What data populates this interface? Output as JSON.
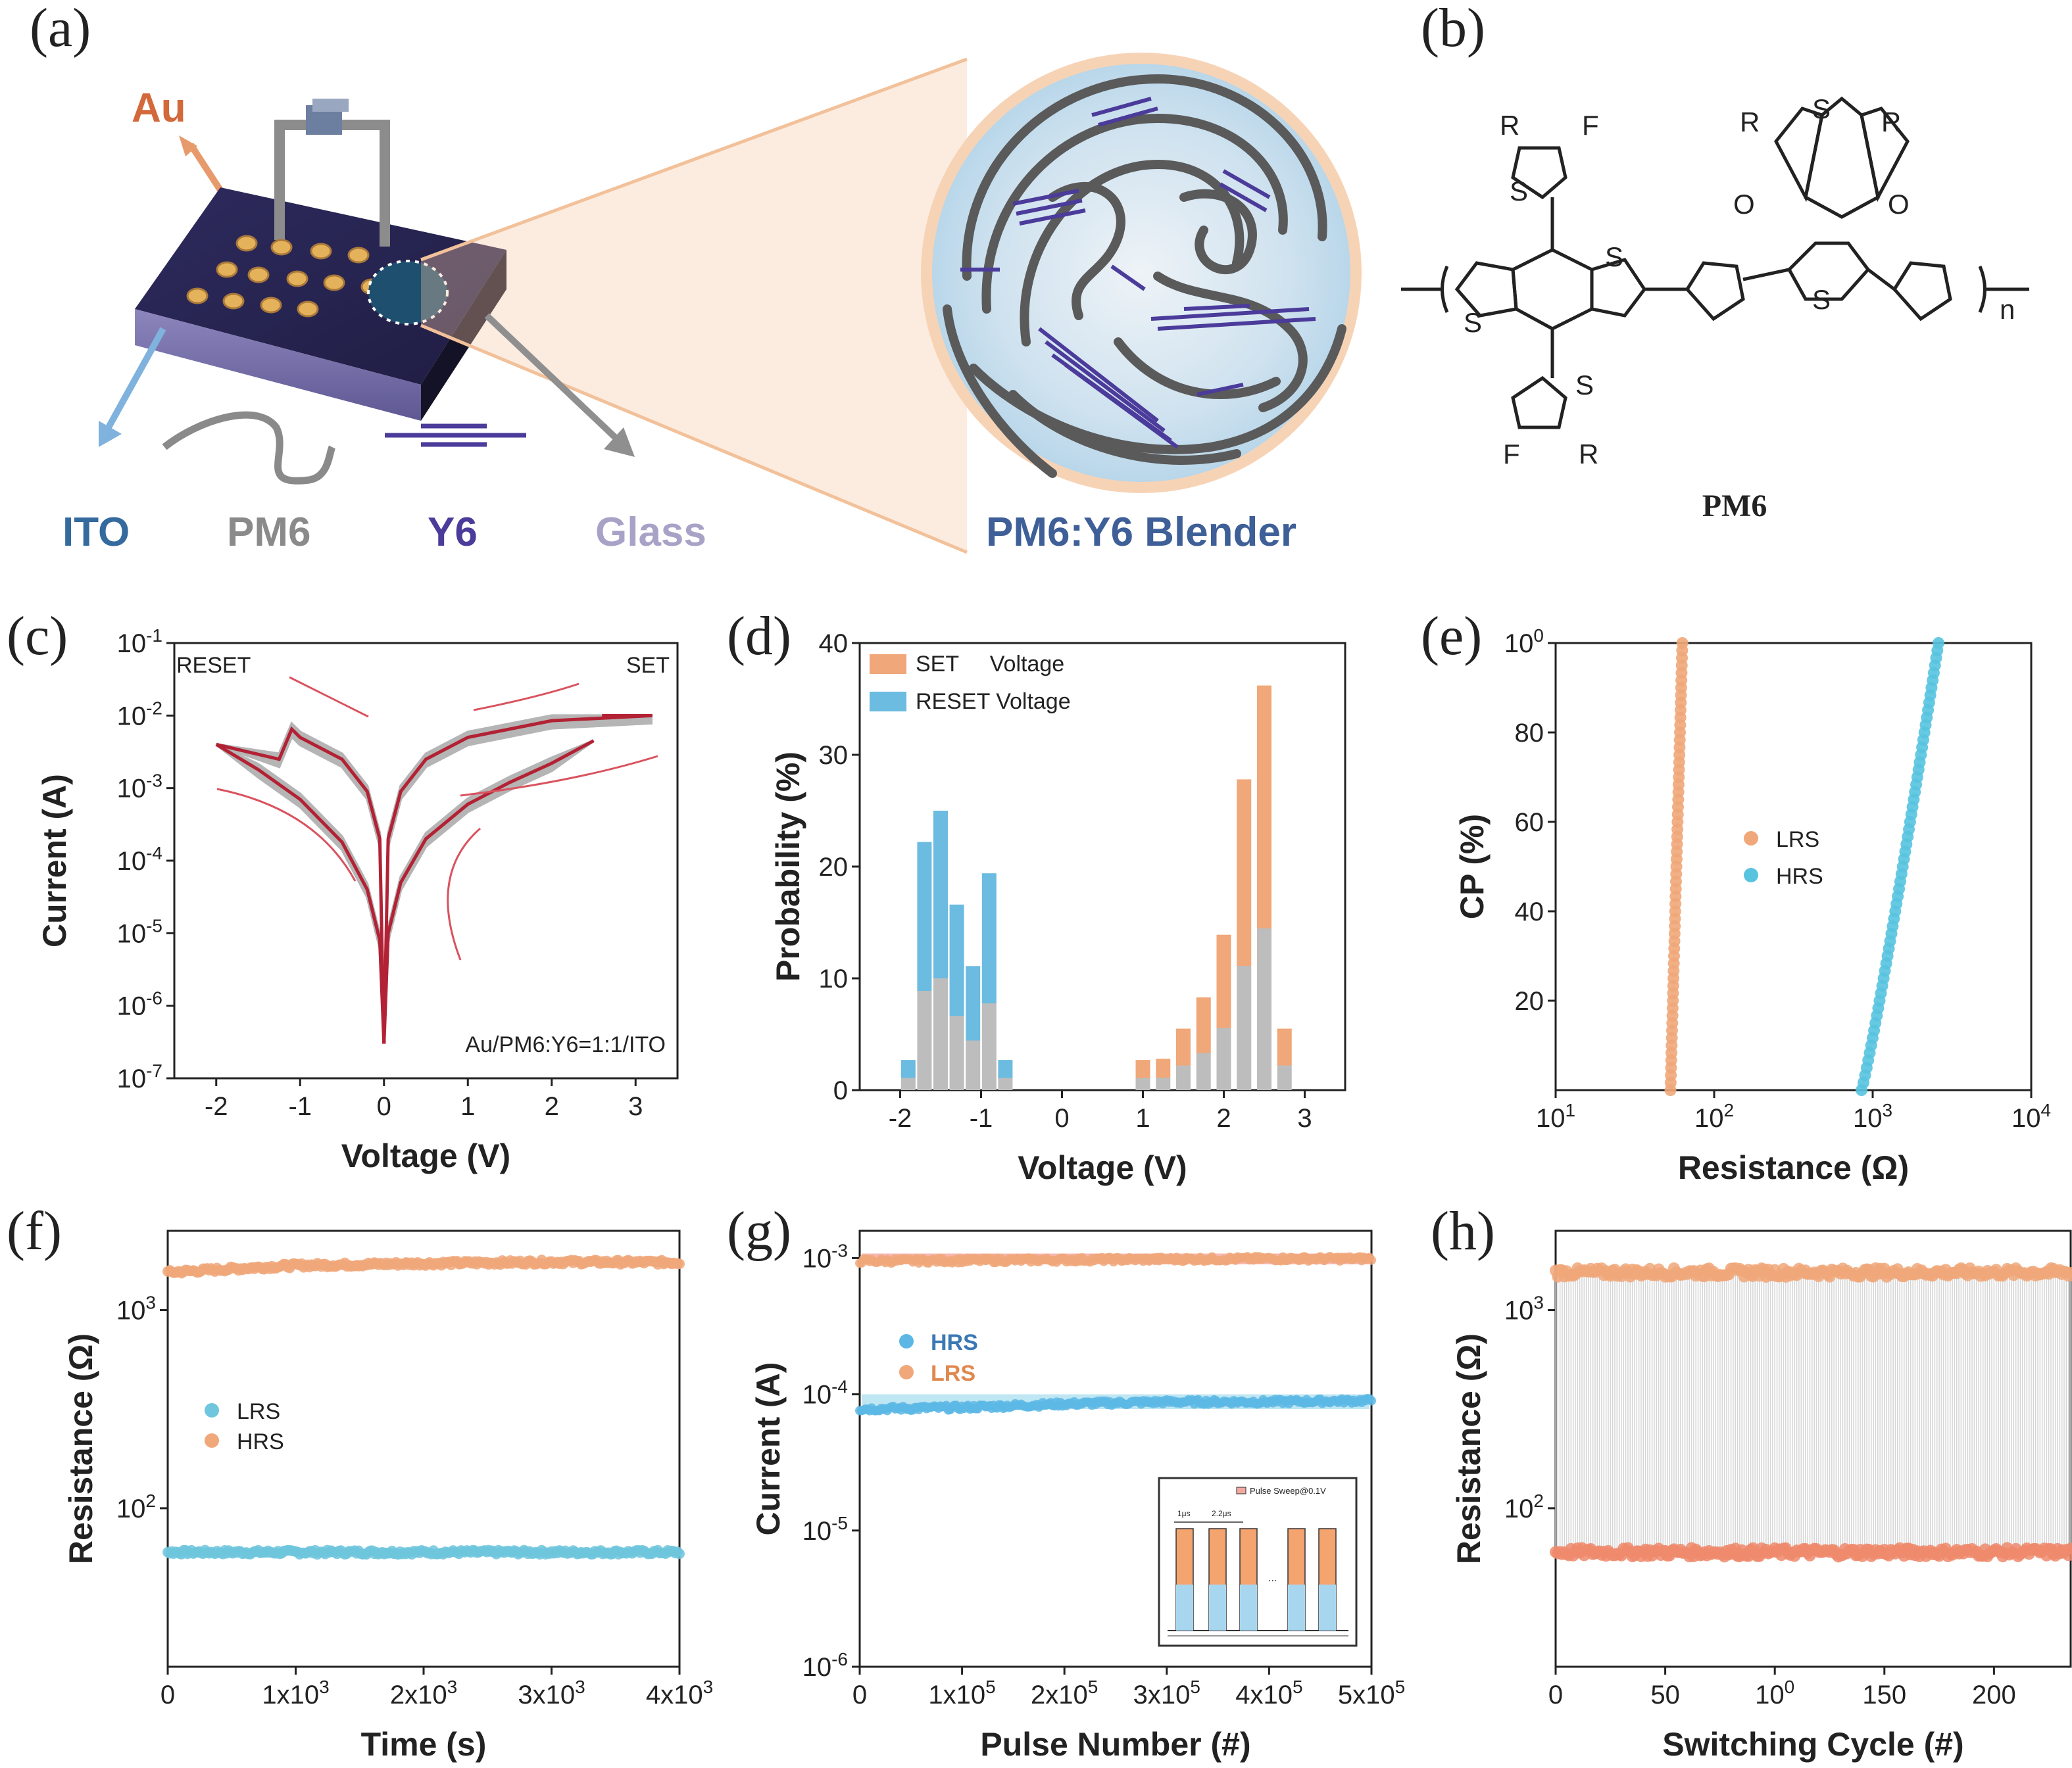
{
  "panels": {
    "a": {
      "label": "(a)",
      "electrode": "Au",
      "legend": [
        "ITO",
        "PM6",
        "Y6",
        "Glass"
      ],
      "blend": "PM6:Y6 Blender",
      "colors": {
        "au": "#d3683b",
        "ito": "#356a9e",
        "pm6": "#8a8a8a",
        "y6": "#4b3b9a",
        "glass": "#a9a2c7",
        "blend": "#3e5f97"
      }
    },
    "b": {
      "label": "(b)",
      "name": "PM6",
      "atoms": {
        "S": "S",
        "F": "F",
        "R": "R",
        "O": "O",
        "n": "n"
      }
    },
    "c": {
      "label": "(c)",
      "tag_left": "RESET",
      "tag_right": "SET",
      "device": "Au/PM6:Y6=1:1/ITO"
    },
    "d": {
      "label": "(d)"
    },
    "e": {
      "label": "(e)"
    },
    "f": {
      "label": "(f)"
    },
    "g": {
      "label": "(g)",
      "inset": {
        "title": "Pulse Sweep@0.1V",
        "width": "1μs",
        "interval": "2.2μs",
        "dots": "..."
      }
    },
    "h": {
      "label": "(h)"
    }
  },
  "chart_data": [
    {
      "id": "c",
      "type": "line",
      "xlabel": "Voltage (V)",
      "ylabel": "Current (A)",
      "xlim": [
        -2.5,
        3.5
      ],
      "ylim_log10": [
        -7,
        -1
      ],
      "xticks": [
        "-2",
        "-1",
        "0",
        "1",
        "2",
        "3"
      ],
      "yticks": [
        "10-7",
        "10-6",
        "10-5",
        "10-4",
        "10-3",
        "10-2",
        "10-1"
      ],
      "compliance_A": 0.01,
      "series": [
        {
          "x": [
            -2.0,
            -1.5,
            -1.0,
            -0.5,
            -0.2,
            -0.05,
            0
          ],
          "y": [
            0.004,
            0.0018,
            0.0007,
            0.00018,
            4e-05,
            8e-06,
            3e-07
          ]
        },
        {
          "x": [
            0,
            0.05,
            0.2,
            0.5,
            1.0,
            1.5,
            2.0,
            2.5
          ],
          "y": [
            3e-07,
            1e-05,
            5e-05,
            0.0002,
            0.0006,
            0.0012,
            0.0022,
            0.0045
          ]
        },
        {
          "x": [
            2.6,
            3.2,
            2.0,
            1.0,
            0.5,
            0.2,
            0.05,
            0
          ],
          "y": [
            0.01,
            0.01,
            0.0085,
            0.005,
            0.0025,
            0.0009,
            0.0002,
            3e-07
          ]
        },
        {
          "x": [
            0,
            -0.05,
            -0.2,
            -0.5,
            -1.0,
            -1.1,
            -1.25,
            -2.0
          ],
          "y": [
            3e-07,
            0.0002,
            0.0009,
            0.0025,
            0.005,
            0.0065,
            0.0025,
            0.004
          ]
        }
      ]
    },
    {
      "id": "d",
      "type": "bar",
      "xlabel": "Voltage (V)",
      "ylabel": "Probability (%)",
      "xlim": [
        -2.5,
        3.5
      ],
      "ylim": [
        0,
        40
      ],
      "xticks": [
        "-2",
        "-1",
        "0",
        "1",
        "2",
        "3"
      ],
      "yticks": [
        "0",
        "10",
        "20",
        "30",
        "40"
      ],
      "legend": [
        "SET     Voltage",
        "RESET Voltage"
      ],
      "series": [
        {
          "name": "SET     Voltage",
          "x": [
            1.0,
            1.25,
            1.5,
            1.75,
            2.0,
            2.25,
            2.5,
            2.75,
            3.0
          ],
          "values": [
            2.7,
            2.8,
            5.5,
            8.3,
            13.9,
            27.8,
            36.2,
            5.5,
            0
          ]
        },
        {
          "name": "RESET Voltage",
          "x": [
            -1.9,
            -1.7,
            -1.5,
            -1.3,
            -1.1,
            -0.9,
            -0.7
          ],
          "values": [
            2.7,
            22.2,
            25.0,
            16.6,
            11.1,
            19.4,
            2.7
          ]
        }
      ]
    },
    {
      "id": "e",
      "type": "scatter",
      "xlabel": "Resistance (Ω)",
      "ylabel": "CP (%)",
      "xlim_log10": [
        1,
        4
      ],
      "ylim": [
        0,
        100
      ],
      "xticks": [
        "101",
        "102",
        "103",
        "104"
      ],
      "yticks": [
        "20",
        "40",
        "60",
        "80",
        "100"
      ],
      "legend": [
        "LRS",
        "HRS"
      ],
      "series": [
        {
          "name": "LRS",
          "resistance_range": [
            53,
            63
          ]
        },
        {
          "name": "HRS",
          "resistance_range": [
            850,
            2600
          ]
        }
      ]
    },
    {
      "id": "f",
      "type": "scatter",
      "xlabel": "Time (s)",
      "ylabel": "Resistance (Ω)",
      "xlim": [
        0,
        4000
      ],
      "ylim_log10": [
        1.2,
        3.4
      ],
      "xticks": [
        "0",
        "1x103",
        "2x103",
        "3x103",
        "4x103"
      ],
      "yticks": [
        "102",
        "103"
      ],
      "legend": [
        "LRS",
        "HRS"
      ],
      "series": [
        {
          "name": "LRS",
          "x": [
            0,
            4000
          ],
          "values": [
            60,
            60
          ]
        },
        {
          "name": "HRS",
          "x": [
            0,
            1000,
            2000,
            3000,
            4000
          ],
          "values": [
            1550,
            1680,
            1720,
            1750,
            1740
          ]
        }
      ]
    },
    {
      "id": "g",
      "type": "scatter",
      "xlabel": "Pulse Number (#)",
      "ylabel": "Current (A)",
      "xlim": [
        0,
        500000
      ],
      "ylim_log10": [
        -6,
        -2.8
      ],
      "xticks": [
        "0",
        "1x105",
        "2x105",
        "3x105",
        "4x105",
        "5x105"
      ],
      "yticks": [
        "10-6",
        "10-5",
        "10-4",
        "10-3"
      ],
      "legend": [
        "HRS",
        "LRS"
      ],
      "series": [
        {
          "name": "HRS",
          "x": [
            0,
            100000,
            200000,
            300000,
            400000,
            500000
          ],
          "values": [
            7.8e-05,
            8e-05,
            8.5e-05,
            8.8e-05,
            8.8e-05,
            9e-05
          ]
        },
        {
          "name": "LRS",
          "x": [
            0,
            100000,
            200000,
            300000,
            400000,
            500000
          ],
          "values": [
            0.00095,
            0.00096,
            0.00097,
            0.00098,
            0.00099,
            0.00099
          ]
        }
      ]
    },
    {
      "id": "h",
      "type": "scatter",
      "xlabel": "Switching Cycle (#)",
      "ylabel": "Resistance (Ω)",
      "xlim": [
        0,
        235
      ],
      "ylim_log10": [
        1.2,
        3.4
      ],
      "xticks": [
        "0",
        "50",
        "100",
        "150",
        "200"
      ],
      "yticks": [
        "102",
        "103"
      ],
      "series": [
        {
          "name": "HRS",
          "x": [
            0,
            235
          ],
          "values": [
            1550,
            1550
          ]
        },
        {
          "name": "LRS",
          "x": [
            0,
            235
          ],
          "values": [
            60,
            60
          ]
        }
      ]
    }
  ]
}
